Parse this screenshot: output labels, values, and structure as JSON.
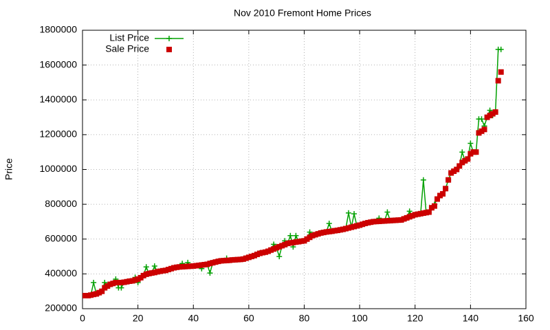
{
  "chart_data": {
    "type": "line",
    "title": "Nov 2010 Fremont Home Prices",
    "ylabel": "Price",
    "xlim": [
      0,
      160
    ],
    "xticks": [
      0,
      20,
      40,
      60,
      80,
      100,
      120,
      140,
      160
    ],
    "ylim": [
      200000,
      1800000
    ],
    "yticks": [
      200000,
      400000,
      600000,
      800000,
      1000000,
      1200000,
      1400000,
      1600000,
      1800000
    ],
    "grid": true,
    "legend": "upper left",
    "x": [
      1,
      2,
      3,
      4,
      5,
      6,
      7,
      8,
      9,
      10,
      11,
      12,
      13,
      14,
      15,
      16,
      17,
      18,
      19,
      20,
      21,
      22,
      23,
      24,
      25,
      26,
      27,
      28,
      29,
      30,
      31,
      32,
      33,
      34,
      35,
      36,
      37,
      38,
      39,
      40,
      41,
      42,
      43,
      44,
      45,
      46,
      47,
      48,
      49,
      50,
      51,
      52,
      53,
      54,
      55,
      56,
      57,
      58,
      59,
      60,
      61,
      62,
      63,
      64,
      65,
      66,
      67,
      68,
      69,
      70,
      71,
      72,
      73,
      74,
      75,
      76,
      77,
      78,
      79,
      80,
      81,
      82,
      83,
      84,
      85,
      86,
      87,
      88,
      89,
      90,
      91,
      92,
      93,
      94,
      95,
      96,
      97,
      98,
      99,
      100,
      101,
      102,
      103,
      104,
      105,
      106,
      107,
      108,
      109,
      110,
      111,
      112,
      113,
      114,
      115,
      116,
      117,
      118,
      119,
      120,
      121,
      122,
      123,
      124,
      125,
      126,
      127,
      128,
      129,
      130,
      131,
      132,
      133,
      134,
      135,
      136,
      137,
      138,
      139,
      140,
      141,
      142,
      143,
      144,
      145,
      146,
      147,
      148,
      149,
      150,
      151
    ],
    "series": [
      {
        "name": "List Price",
        "color": "#00a000",
        "marker": "plus",
        "values": [
          275000,
          275000,
          278000,
          350000,
          285000,
          292000,
          300000,
          350000,
          330000,
          340000,
          345000,
          370000,
          320000,
          320000,
          352000,
          355000,
          358000,
          360000,
          380000,
          350000,
          378000,
          390000,
          440000,
          402000,
          405000,
          445000,
          412000,
          415000,
          418000,
          420000,
          425000,
          430000,
          435000,
          438000,
          440000,
          460000,
          442000,
          465000,
          444000,
          445000,
          447000,
          449000,
          430000,
          453000,
          455000,
          405000,
          464000,
          468000,
          472000,
          475000,
          476000,
          490000,
          478000,
          480000,
          481000,
          482000,
          483000,
          485000,
          490000,
          495000,
          500000,
          505000,
          512000,
          520000,
          522000,
          525000,
          530000,
          537000,
          570000,
          550000,
          500000,
          562000,
          590000,
          575000,
          620000,
          555000,
          620000,
          585000,
          588000,
          590000,
          600000,
          640000,
          620000,
          625000,
          630000,
          635000,
          638000,
          641000,
          690000,
          645000,
          648000,
          650000,
          653000,
          656000,
          660000,
          750000,
          668000,
          745000,
          676000,
          680000,
          685000,
          690000,
          694000,
          697000,
          700000,
          701000,
          720000,
          703000,
          704000,
          755000,
          706000,
          707000,
          708000,
          709000,
          710000,
          716000,
          722000,
          760000,
          734000,
          740000,
          743000,
          746000,
          940000,
          752000,
          755000,
          780000,
          800000,
          830000,
          850000,
          860000,
          890000,
          940000,
          980000,
          990000,
          1000000,
          1020000,
          1100000,
          1050000,
          1060000,
          1150000,
          1100000,
          1100000,
          1290000,
          1290000,
          1250000,
          1300000,
          1340000,
          1310000,
          1330000,
          1690000,
          1690000
        ]
      },
      {
        "name": "Sale Price",
        "color": "#cc0000",
        "marker": "square",
        "values": [
          275000,
          275000,
          278000,
          282000,
          285000,
          292000,
          300000,
          320000,
          330000,
          340000,
          345000,
          350000,
          350000,
          350000,
          352000,
          355000,
          358000,
          360000,
          365000,
          370000,
          378000,
          390000,
          398000,
          402000,
          405000,
          408000,
          412000,
          415000,
          418000,
          420000,
          425000,
          430000,
          435000,
          438000,
          440000,
          441000,
          442000,
          443000,
          444000,
          445000,
          447000,
          449000,
          451000,
          453000,
          455000,
          460000,
          464000,
          468000,
          472000,
          475000,
          476000,
          477000,
          478000,
          480000,
          481000,
          482000,
          483000,
          485000,
          490000,
          495000,
          500000,
          505000,
          512000,
          518000,
          522000,
          525000,
          530000,
          537000,
          543000,
          550000,
          556000,
          562000,
          568000,
          575000,
          578000,
          580000,
          583000,
          585000,
          588000,
          590000,
          600000,
          610000,
          620000,
          625000,
          630000,
          635000,
          638000,
          641000,
          643000,
          645000,
          648000,
          650000,
          653000,
          656000,
          660000,
          664000,
          668000,
          672000,
          676000,
          680000,
          685000,
          690000,
          694000,
          697000,
          700000,
          701000,
          702000,
          703000,
          704000,
          705000,
          706000,
          707000,
          708000,
          709000,
          710000,
          716000,
          722000,
          728000,
          734000,
          740000,
          743000,
          746000,
          749000,
          752000,
          755000,
          780000,
          790000,
          830000,
          850000,
          860000,
          890000,
          940000,
          980000,
          990000,
          1000000,
          1020000,
          1040000,
          1050000,
          1060000,
          1090000,
          1100000,
          1100000,
          1210000,
          1220000,
          1230000,
          1300000,
          1310000,
          1320000,
          1330000,
          1510000,
          1560000
        ]
      }
    ]
  }
}
